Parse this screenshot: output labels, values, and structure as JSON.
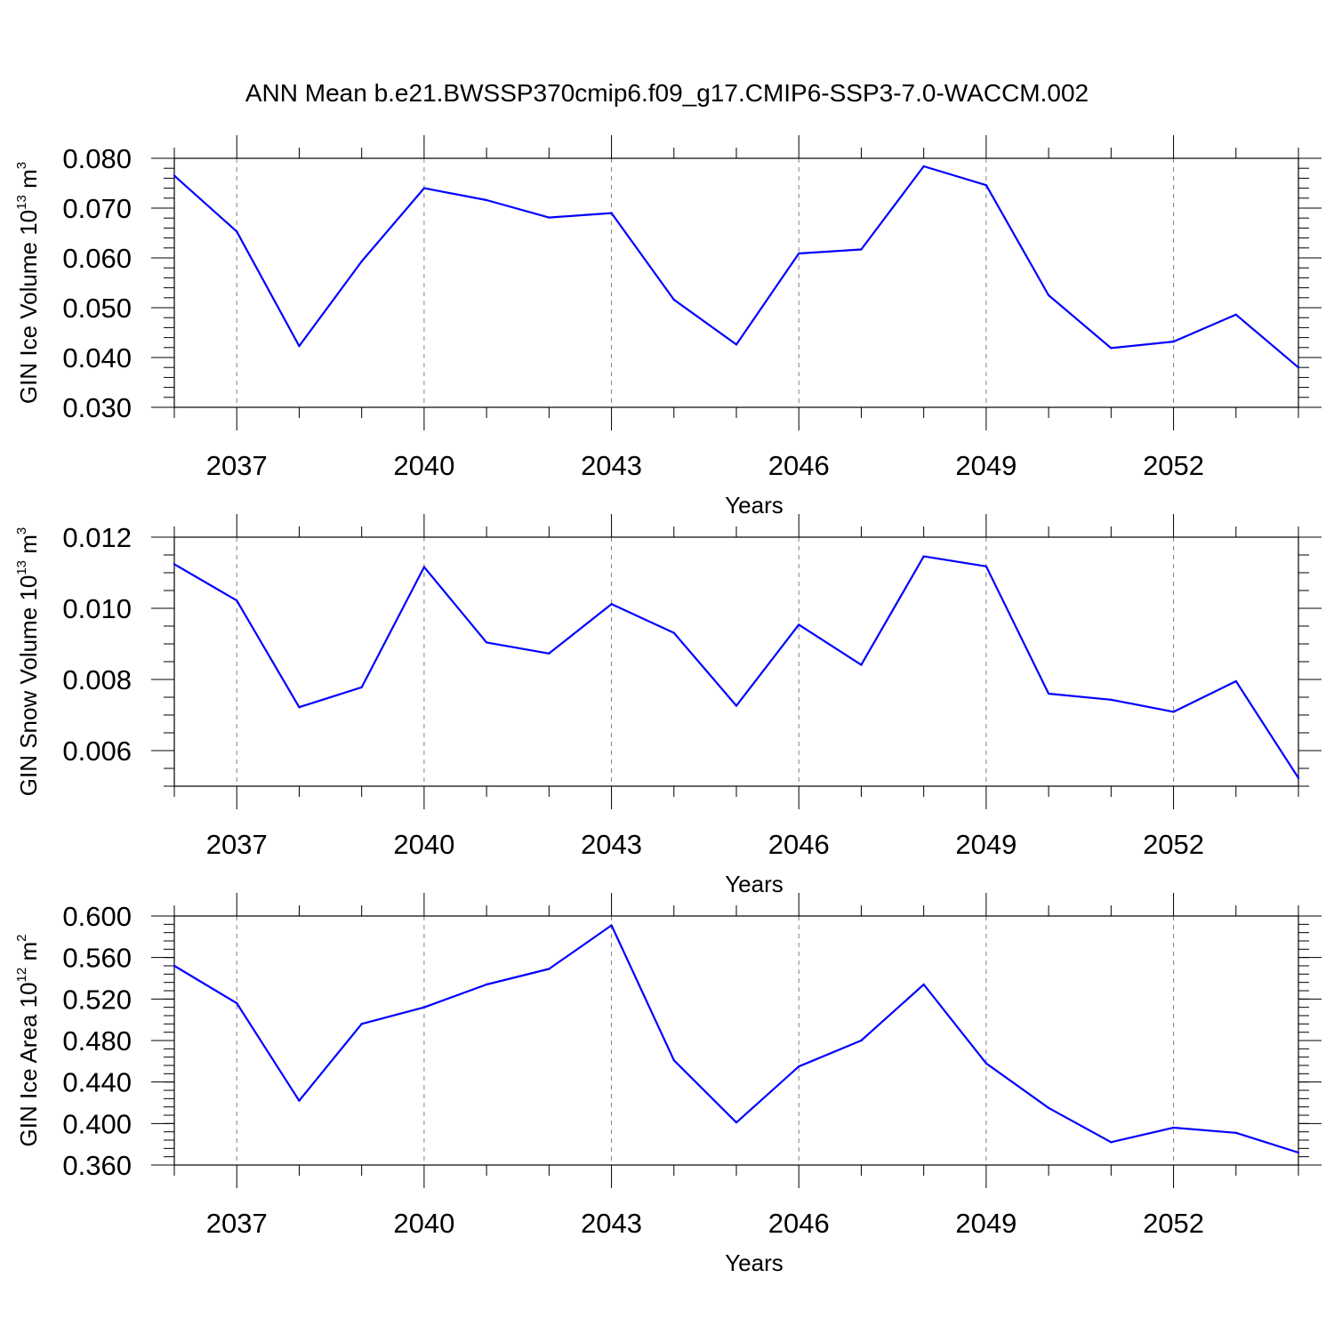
{
  "title": "ANN Mean b.e21.BWSSP370cmip6.f09_g17.CMIP6-SSP3-7.0-WACCM.002",
  "colors": {
    "line": "#0000ff",
    "axis": "#000000",
    "grid": "#808080"
  },
  "chart_data": [
    {
      "type": "line",
      "ylabel_main": "GIN Ice Volume 10",
      "ylabel_exp": "13",
      "ylabel_unit": " m",
      "ylabel_unit_exp": "3",
      "xlabel": "Years",
      "xlim": [
        2036,
        2054
      ],
      "ylim": [
        0.03,
        0.08
      ],
      "x_ticks": [
        2037,
        2040,
        2043,
        2046,
        2049,
        2052
      ],
      "x_tick_labels": [
        "2037",
        "2040",
        "2043",
        "2046",
        "2049",
        "2052"
      ],
      "y_ticks": [
        0.03,
        0.04,
        0.05,
        0.06,
        0.07,
        0.08
      ],
      "y_tick_labels": [
        "0.030",
        "0.040",
        "0.050",
        "0.060",
        "0.070",
        "0.080"
      ],
      "y_minor_step": 0.002,
      "grid": "x-dashed",
      "x": [
        2036,
        2037,
        2038,
        2039,
        2040,
        2041,
        2042,
        2043,
        2044,
        2045,
        2046,
        2047,
        2048,
        2049,
        2050,
        2051,
        2052,
        2053,
        2054
      ],
      "y": [
        0.0765,
        0.0653,
        0.0423,
        0.0593,
        0.074,
        0.0716,
        0.0681,
        0.069,
        0.0516,
        0.0426,
        0.0609,
        0.0617,
        0.0784,
        0.0746,
        0.0525,
        0.0419,
        0.0432,
        0.0486,
        0.038
      ]
    },
    {
      "type": "line",
      "ylabel_main": "GIN Snow Volume 10",
      "ylabel_exp": "13",
      "ylabel_unit": " m",
      "ylabel_unit_exp": "3",
      "xlabel": "Years",
      "xlim": [
        2036,
        2054
      ],
      "ylim": [
        0.005,
        0.012
      ],
      "x_ticks": [
        2037,
        2040,
        2043,
        2046,
        2049,
        2052
      ],
      "x_tick_labels": [
        "2037",
        "2040",
        "2043",
        "2046",
        "2049",
        "2052"
      ],
      "y_ticks": [
        0.006,
        0.008,
        0.01,
        0.012
      ],
      "y_tick_labels": [
        "0.006",
        "0.008",
        "0.010",
        "0.012"
      ],
      "y_minor_step": 0.0005,
      "grid": "x-dashed",
      "x": [
        2036,
        2037,
        2038,
        2039,
        2040,
        2041,
        2042,
        2043,
        2044,
        2045,
        2046,
        2047,
        2048,
        2049,
        2050,
        2051,
        2052,
        2053,
        2054
      ],
      "y": [
        0.01124,
        0.01022,
        0.00722,
        0.00778,
        0.01116,
        0.00904,
        0.00873,
        0.01012,
        0.00931,
        0.00726,
        0.00954,
        0.00841,
        0.01146,
        0.01118,
        0.0076,
        0.00743,
        0.00709,
        0.00795,
        0.00523
      ]
    },
    {
      "type": "line",
      "ylabel_main": "GIN Ice Area 10",
      "ylabel_exp": "12",
      "ylabel_unit": " m",
      "ylabel_unit_exp": "2",
      "xlabel": "Years",
      "xlim": [
        2036,
        2054
      ],
      "ylim": [
        0.36,
        0.6
      ],
      "x_ticks": [
        2037,
        2040,
        2043,
        2046,
        2049,
        2052
      ],
      "x_tick_labels": [
        "2037",
        "2040",
        "2043",
        "2046",
        "2049",
        "2052"
      ],
      "y_ticks": [
        0.36,
        0.4,
        0.44,
        0.48,
        0.52,
        0.56,
        0.6
      ],
      "y_tick_labels": [
        "0.360",
        "0.400",
        "0.440",
        "0.480",
        "0.520",
        "0.560",
        "0.600"
      ],
      "y_minor_step": 0.008,
      "grid": "x-dashed",
      "x": [
        2036,
        2037,
        2038,
        2039,
        2040,
        2041,
        2042,
        2043,
        2044,
        2045,
        2046,
        2047,
        2048,
        2049,
        2050,
        2051,
        2052,
        2053,
        2054
      ],
      "y": [
        0.552,
        0.516,
        0.422,
        0.496,
        0.512,
        0.534,
        0.549,
        0.591,
        0.461,
        0.401,
        0.455,
        0.48,
        0.534,
        0.458,
        0.415,
        0.382,
        0.396,
        0.391,
        0.372
      ]
    }
  ]
}
